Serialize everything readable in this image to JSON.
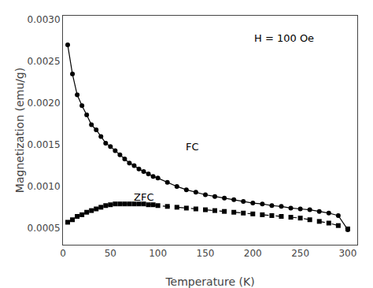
{
  "chart_data": {
    "type": "line",
    "xlabel": "Temperature (K)",
    "ylabel": "Magnetization (emu/g)",
    "xlim": [
      0,
      310
    ],
    "ylim": [
      0.0003,
      0.00305
    ],
    "xticks": [
      0,
      50,
      100,
      150,
      200,
      250,
      300
    ],
    "yticks": [
      0.0005,
      {
        "value": 0.001,
        "label": "0.0010"
      },
      0.0015,
      {
        "value": 0.002,
        "label": "0.0020"
      },
      0.0025,
      {
        "value": 0.003,
        "label": "0.0030"
      }
    ],
    "grid": false,
    "series": [
      {
        "color": "#000000",
        "marker": "circle",
        "line_style": "solid",
        "x": [
          5,
          10,
          15,
          20,
          25,
          30,
          35,
          40,
          45,
          50,
          55,
          60,
          65,
          70,
          75,
          80,
          85,
          90,
          95,
          100,
          110,
          120,
          130,
          140,
          150,
          160,
          170,
          180,
          190,
          200,
          210,
          220,
          230,
          240,
          250,
          260,
          270,
          280,
          290,
          300
        ],
        "values": [
          0.0027,
          0.00235,
          0.0021,
          0.00197,
          0.00186,
          0.00174,
          0.00168,
          0.0016,
          0.00152,
          0.00148,
          0.00143,
          0.00138,
          0.00133,
          0.00128,
          0.00125,
          0.00121,
          0.00118,
          0.00115,
          0.00112,
          0.0011,
          0.00105,
          0.001,
          0.00096,
          0.00093,
          0.0009,
          0.00088,
          0.00086,
          0.00084,
          0.00082,
          0.0008,
          0.00079,
          0.00077,
          0.00076,
          0.00074,
          0.00073,
          0.00072,
          0.0007,
          0.00068,
          0.00065,
          0.00048
        ]
      },
      {
        "color": "#000000",
        "marker": "square",
        "line_style": "dashed",
        "x": [
          5,
          10,
          15,
          20,
          25,
          30,
          35,
          40,
          45,
          50,
          55,
          60,
          65,
          70,
          75,
          80,
          85,
          90,
          95,
          100,
          110,
          120,
          130,
          140,
          150,
          160,
          170,
          180,
          190,
          200,
          210,
          220,
          230,
          240,
          250,
          260,
          270,
          280,
          290,
          300
        ],
        "values": [
          0.00057,
          0.0006,
          0.00064,
          0.00066,
          0.00069,
          0.00071,
          0.00073,
          0.00075,
          0.00077,
          0.00078,
          0.00079,
          0.00079,
          0.00079,
          0.00079,
          0.00079,
          0.00079,
          0.00079,
          0.00078,
          0.00078,
          0.00077,
          0.00076,
          0.00075,
          0.00074,
          0.00073,
          0.00072,
          0.00071,
          0.0007,
          0.00069,
          0.00068,
          0.00067,
          0.00066,
          0.00065,
          0.00064,
          0.00063,
          0.00062,
          0.0006,
          0.00058,
          0.00056,
          0.00053,
          0.00049
        ]
      }
    ],
    "annotations": [
      {
        "text": "H = 100 Oe",
        "x": 200,
        "y": 0.00287
      },
      {
        "text": "FC",
        "x": 128,
        "y": 0.00148
      },
      {
        "text": "ZFC",
        "x": 73,
        "y": 0.00087
      }
    ]
  }
}
